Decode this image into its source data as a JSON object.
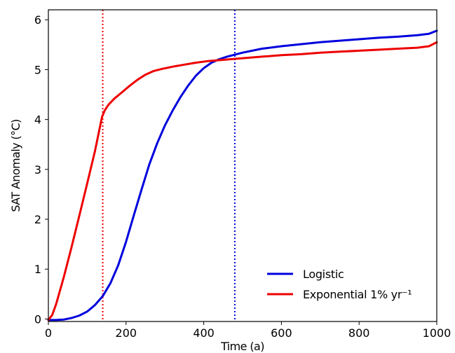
{
  "chart_data": {
    "type": "line",
    "xlabel": "Time (a)",
    "ylabel": "SAT Anomaly (°C)",
    "xlim": [
      0,
      1000
    ],
    "ylim": [
      -0.05,
      6.2
    ],
    "x_ticks": [
      0,
      200,
      400,
      600,
      800,
      1000
    ],
    "x_tick_labels": [
      "0",
      "200",
      "400",
      "600",
      "800",
      "1000"
    ],
    "y_ticks": [
      0,
      1,
      2,
      3,
      4,
      5,
      6
    ],
    "y_tick_labels": [
      "0",
      "1",
      "2",
      "3",
      "4",
      "5",
      "6"
    ],
    "grid": false,
    "legend_position": "lower-right",
    "series": [
      {
        "name": "Logistic",
        "color": "#0000dd",
        "x": [
          0,
          20,
          40,
          60,
          80,
          100,
          120,
          140,
          160,
          180,
          200,
          220,
          240,
          260,
          280,
          300,
          320,
          340,
          360,
          380,
          400,
          420,
          440,
          460,
          480,
          500,
          550,
          600,
          650,
          700,
          750,
          800,
          850,
          900,
          950,
          980,
          1000
        ],
        "y": [
          -0.02,
          -0.02,
          -0.01,
          0.02,
          0.07,
          0.15,
          0.28,
          0.46,
          0.72,
          1.08,
          1.55,
          2.08,
          2.6,
          3.1,
          3.52,
          3.88,
          4.18,
          4.45,
          4.68,
          4.88,
          5.03,
          5.14,
          5.21,
          5.26,
          5.3,
          5.34,
          5.42,
          5.47,
          5.51,
          5.55,
          5.58,
          5.61,
          5.64,
          5.66,
          5.69,
          5.72,
          5.78
        ]
      },
      {
        "name": "Exponential 1% yr⁻¹",
        "color": "#ee0000",
        "x": [
          0,
          10,
          20,
          40,
          60,
          80,
          100,
          120,
          138,
          145,
          155,
          170,
          190,
          210,
          230,
          250,
          270,
          290,
          320,
          350,
          380,
          410,
          440,
          470,
          500,
          550,
          600,
          650,
          700,
          750,
          800,
          850,
          900,
          950,
          980,
          1000
        ],
        "y": [
          -0.02,
          0.08,
          0.3,
          0.85,
          1.45,
          2.08,
          2.72,
          3.37,
          4.05,
          4.18,
          4.3,
          4.42,
          4.55,
          4.68,
          4.8,
          4.9,
          4.97,
          5.01,
          5.06,
          5.1,
          5.14,
          5.17,
          5.19,
          5.21,
          5.23,
          5.26,
          5.29,
          5.31,
          5.34,
          5.36,
          5.38,
          5.4,
          5.42,
          5.44,
          5.47,
          5.55
        ]
      }
    ],
    "vlines": [
      {
        "x": 140,
        "color": "#ee0000",
        "style": "dotted"
      },
      {
        "x": 480,
        "color": "#0000dd",
        "style": "dotted"
      }
    ]
  }
}
